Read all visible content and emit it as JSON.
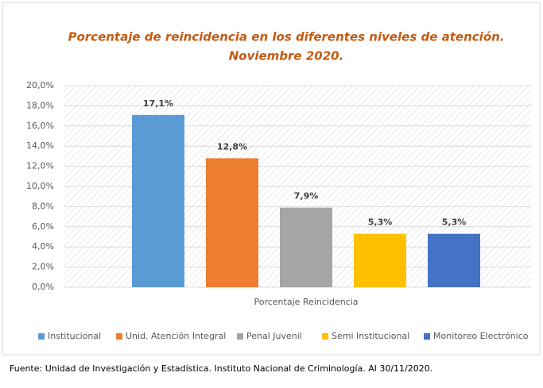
{
  "chart_data": {
    "type": "bar",
    "title": [
      "Porcentaje de reincidencia en los diferentes niveles de atención.",
      "Noviembre 2020."
    ],
    "categories": [
      "Porcentaje Reincidencia"
    ],
    "series": [
      {
        "name": "Institucional",
        "color": "#5b9bd5",
        "values": [
          17.1
        ],
        "value_labels": [
          "17,1%"
        ]
      },
      {
        "name": "Unid. Atención Integral",
        "color": "#ed7d31",
        "values": [
          12.8
        ],
        "value_labels": [
          "12,8%"
        ]
      },
      {
        "name": "Penal Juvenil",
        "color": "#a5a5a5",
        "values": [
          7.9
        ],
        "value_labels": [
          "7,9%"
        ]
      },
      {
        "name": "Semi Institucional",
        "color": "#ffc000",
        "values": [
          5.3
        ],
        "value_labels": [
          "5,3%"
        ]
      },
      {
        "name": "Monitoreo Electrónico",
        "color": "#4472c4",
        "values": [
          5.3
        ],
        "value_labels": [
          "5,3%"
        ]
      }
    ],
    "ylim": [
      0,
      20
    ],
    "yticks": [
      {
        "value": 0,
        "label": "0,0%"
      },
      {
        "value": 2,
        "label": "2,0%"
      },
      {
        "value": 4,
        "label": "4,0%"
      },
      {
        "value": 6,
        "label": "6,0%"
      },
      {
        "value": 8,
        "label": "8,0%"
      },
      {
        "value": 10,
        "label": "10,0%"
      },
      {
        "value": 12,
        "label": "12,0%"
      },
      {
        "value": 14,
        "label": "14,0%"
      },
      {
        "value": 16,
        "label": "16,0%"
      },
      {
        "value": 18,
        "label": "18,0%"
      },
      {
        "value": 20,
        "label": "20,0%"
      }
    ],
    "grid": true,
    "legend": "bottom",
    "source": "Fuente: Unidad de Investigación y Estadística. Instituto Nacional de Criminología. Al 30/11/2020."
  }
}
